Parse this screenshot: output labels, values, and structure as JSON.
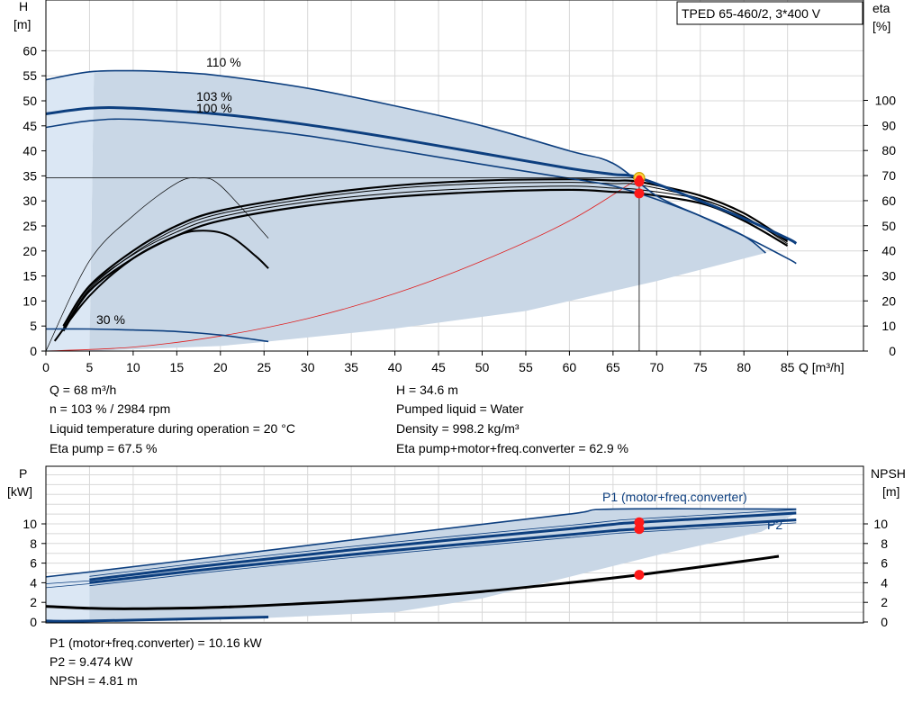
{
  "model_label": "TPED 65-460/2, 3*400 V",
  "colors": {
    "band_fill": "#c9d7e6",
    "band_edge": "#dbe7f4",
    "pump_curve": "#0d3f7f",
    "efficiency_curve": "#000000",
    "system_curve": "#e02020",
    "operating_point": "#ff1a1a",
    "operating_point_outline": "#c8a000",
    "grid": "#d8d8d8"
  },
  "top_chart": {
    "y_axis_title": "H",
    "y_axis_unit": "[m]",
    "right_axis_title": "eta",
    "right_axis_unit": "[%]",
    "x_axis_label": "Q [m³/h]",
    "x_ticks": [
      0,
      5,
      10,
      15,
      20,
      25,
      30,
      35,
      40,
      45,
      50,
      55,
      60,
      65,
      70,
      75,
      80,
      85
    ],
    "y_ticks": [
      0,
      5,
      10,
      15,
      20,
      25,
      30,
      35,
      40,
      45,
      50,
      55,
      60
    ],
    "right_ticks": [
      0,
      10,
      20,
      30,
      40,
      50,
      60,
      70,
      80,
      90,
      100
    ],
    "curve_labels": [
      "110 %",
      "103 %",
      "100 %",
      "30 %"
    ],
    "info_left": [
      "Q = 68 m³/h",
      "n = 103 % / 2984 rpm",
      "Liquid temperature during operation = 20 °C",
      "Eta pump = 67.5 %"
    ],
    "info_right": [
      "H = 34.6 m",
      "Pumped liquid = Water",
      "Density = 998.2 kg/m³",
      "Eta pump+motor+freq.converter = 62.9 %"
    ]
  },
  "bottom_chart": {
    "y_axis_title": "P",
    "y_axis_unit": "[kW]",
    "right_axis_title": "NPSH",
    "right_axis_unit": "[m]",
    "y_ticks": [
      0,
      2,
      4,
      6,
      8,
      10
    ],
    "right_ticks": [
      0,
      2,
      4,
      6,
      8,
      10
    ],
    "series_labels": [
      "P1 (motor+freq.converter)",
      "P2"
    ],
    "info": [
      "P1 (motor+freq.converter) = 10.16 kW",
      "P2 = 9.474 kW",
      "NPSH = 4.81 m"
    ]
  },
  "chart_data": [
    {
      "type": "line",
      "title": "TPED 65-460/2, 3*400 V",
      "xlabel": "Q [m³/h]",
      "ylabel": "H [m]",
      "y2label": "eta [%]",
      "xlim": [
        0,
        90
      ],
      "ylim": [
        0,
        65
      ],
      "y2lim": [
        0,
        100
      ],
      "grid": true,
      "series": [
        {
          "name": "110 %",
          "axis": "H",
          "x": [
            0,
            5,
            10,
            15,
            20,
            30,
            40,
            50,
            60,
            65,
            70,
            75,
            80,
            85,
            86
          ],
          "y": [
            54.2,
            55.8,
            56,
            55.7,
            55,
            52.5,
            49,
            45,
            40,
            37.5,
            31,
            27,
            23,
            18.5,
            17.5
          ]
        },
        {
          "name": "103 %",
          "axis": "H",
          "x": [
            0,
            5,
            10,
            20,
            30,
            40,
            50,
            60,
            65,
            68,
            75,
            80,
            85,
            86
          ],
          "y": [
            47.4,
            48.5,
            48.5,
            47.3,
            45.2,
            42.5,
            39.5,
            36.5,
            35.3,
            34.6,
            30,
            26.5,
            22.5,
            21.5
          ]
        },
        {
          "name": "100 %",
          "axis": "H",
          "x": [
            0,
            5,
            10,
            20,
            30,
            40,
            50,
            60,
            65,
            70,
            75,
            80,
            82.5
          ],
          "y": [
            44.7,
            46,
            46.3,
            45,
            43,
            40.2,
            37.3,
            34.5,
            33,
            30.3,
            27,
            23,
            19.6
          ]
        },
        {
          "name": "30 %",
          "axis": "H",
          "x": [
            0,
            5,
            10,
            15,
            20,
            25.5
          ],
          "y": [
            4.4,
            4.4,
            4.2,
            3.9,
            3.2,
            1.9
          ]
        },
        {
          "name": "eta pump (range)",
          "axis": "eta",
          "x": [
            2,
            5,
            10,
            15,
            20,
            30,
            40,
            50,
            60,
            65,
            68,
            75,
            80,
            85
          ],
          "y": [
            10,
            26,
            40,
            50,
            56,
            62,
            66,
            68,
            68.5,
            68,
            67.5,
            62,
            55,
            44
          ]
        },
        {
          "name": "eta pump+motor+freq.converter",
          "axis": "eta",
          "x": [
            2,
            5,
            10,
            15,
            20,
            30,
            40,
            50,
            60,
            65,
            68,
            75,
            80,
            85
          ],
          "y": [
            8,
            24,
            37,
            46,
            52,
            58,
            61.5,
            63.5,
            64.3,
            63.5,
            62.9,
            59,
            52,
            42
          ]
        },
        {
          "name": "eta 30 %",
          "axis": "eta",
          "x": [
            1,
            5,
            10,
            15,
            18,
            21,
            24,
            25.5
          ],
          "y": [
            4,
            22,
            37,
            46,
            48,
            46,
            38,
            33
          ]
        },
        {
          "name": "eta 100 % thin",
          "axis": "eta",
          "x": [
            0,
            5,
            10,
            15,
            17.5,
            20,
            25.5
          ],
          "y": [
            0,
            36,
            54,
            67,
            69,
            66,
            45
          ]
        },
        {
          "name": "system curve",
          "axis": "H",
          "x": [
            0,
            10,
            20,
            30,
            40,
            50,
            60,
            68
          ],
          "y": [
            0,
            0.8,
            3,
            6.5,
            11.5,
            18,
            26,
            34.6
          ]
        }
      ],
      "operating_point": {
        "Q": 68,
        "H": 34.6,
        "eta_pump": 67.5,
        "eta_total": 62.9
      }
    },
    {
      "type": "line",
      "xlabel": "Q [m³/h]",
      "ylabel": "P [kW]",
      "y2label": "NPSH [m]",
      "xlim": [
        0,
        90
      ],
      "ylim": [
        0,
        12
      ],
      "y2lim": [
        0,
        12
      ],
      "grid": true,
      "series": [
        {
          "name": "P1 (motor+freq.converter)",
          "x": [
            5,
            20,
            40,
            60,
            65,
            68,
            86
          ],
          "y": [
            4.3,
            5.9,
            7.8,
            9.5,
            9.95,
            10.16,
            11.1
          ]
        },
        {
          "name": "P2",
          "x": [
            5,
            20,
            40,
            60,
            65,
            68,
            86
          ],
          "y": [
            4.0,
            5.5,
            7.3,
            8.9,
            9.3,
            9.474,
            10.4
          ]
        },
        {
          "name": "P1 110 %",
          "x": [
            0,
            5,
            20,
            40,
            60,
            65,
            86
          ],
          "y": [
            4.6,
            5.1,
            6.7,
            8.9,
            11,
            11.5,
            11.5
          ]
        },
        {
          "name": "NPSH",
          "x": [
            0,
            5,
            10,
            20,
            30,
            40,
            50,
            60,
            68,
            80,
            84
          ],
          "y": [
            1.6,
            1.4,
            1.35,
            1.5,
            1.9,
            2.4,
            3.1,
            4.0,
            4.81,
            6.2,
            6.7
          ]
        },
        {
          "name": "P1 30 %",
          "x": [
            0,
            5,
            25.5
          ],
          "y": [
            0.1,
            0.1,
            0.5
          ]
        }
      ],
      "operating_point": {
        "Q": 68,
        "P1": 10.16,
        "P2": 9.474,
        "NPSH": 4.81
      }
    }
  ]
}
